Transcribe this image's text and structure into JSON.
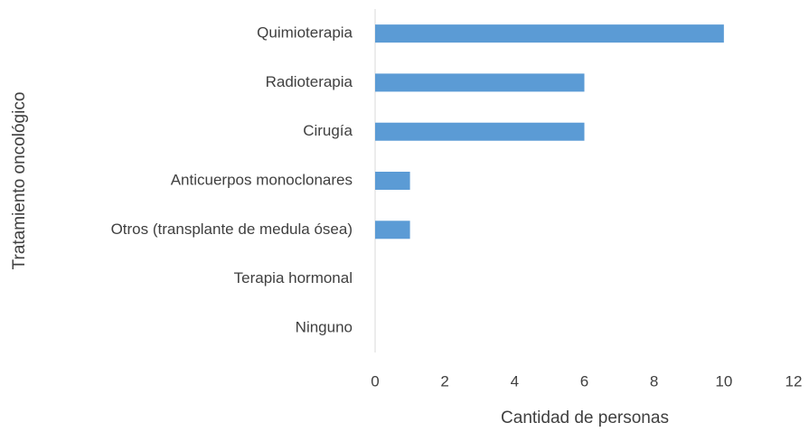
{
  "chart_data": {
    "type": "bar",
    "orientation": "horizontal",
    "xlabel": "Cantidad de personas",
    "ylabel": "Tratamiento oncológico",
    "categories": [
      "Quimioterapia",
      "Radioterapia",
      "Cirugía",
      "Anticuerpos monoclonares",
      "Otros (transplante de medula ósea)",
      "Terapia hormonal",
      "Ninguno"
    ],
    "values": [
      10,
      6,
      6,
      1,
      1,
      0,
      0
    ],
    "color": "#5b9bd5",
    "xlim": [
      0,
      12
    ],
    "xticks": [
      0,
      2,
      4,
      6,
      8,
      10,
      12
    ],
    "grid": false
  }
}
